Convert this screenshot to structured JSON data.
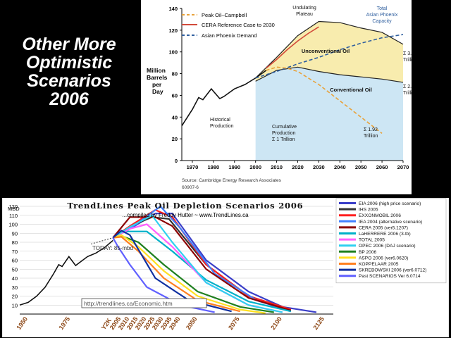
{
  "slide": {
    "title_lines": [
      "Other More",
      "Optimistic",
      "Scenarios",
      "2006"
    ]
  },
  "colors": {
    "background": "#000000",
    "peak_campbell": "#e8a23a",
    "cera": "#d24a3a",
    "asian": "#2f5f9f",
    "fill_unconv": "#f8ecae",
    "fill_conv": "#cde6f4"
  },
  "chart_data": [
    {
      "type": "line",
      "ylabel": "Million Barrels per Day",
      "ylim": [
        0,
        140
      ],
      "xlim": [
        1965,
        2070
      ],
      "x_ticks": [
        1970,
        1980,
        1990,
        2000,
        2010,
        2020,
        2030,
        2040,
        2050,
        2060,
        2070
      ],
      "y_ticks": [
        0,
        20,
        40,
        60,
        80,
        100,
        120,
        140
      ],
      "grid": false,
      "legend_position": "top-left",
      "series": [
        {
          "name": "Peak Oil–Campbell",
          "color": "#e8a23a",
          "dashed": true,
          "x": [
            2005,
            2010,
            2015,
            2020,
            2030,
            2040,
            2050,
            2060
          ],
          "y": [
            83,
            86,
            85,
            82,
            70,
            55,
            40,
            25
          ]
        },
        {
          "name": "CERA Reference Case to 2030",
          "color": "#d24a3a",
          "dashed": false,
          "x": [
            2005,
            2010,
            2015,
            2020,
            2025,
            2030
          ],
          "y": [
            85,
            93,
            102,
            110,
            117,
            123
          ]
        },
        {
          "name": "Asian Phoenix Demand",
          "color": "#2f5f9f",
          "dashed": true,
          "x": [
            2000,
            2010,
            2020,
            2030,
            2040,
            2050,
            2060,
            2070
          ],
          "y": [
            76,
            82,
            89,
            95,
            102,
            108,
            113,
            116
          ]
        },
        {
          "name": "Historical Production",
          "color": "#111111",
          "dashed": false,
          "x": [
            1965,
            1970,
            1973,
            1975,
            1979,
            1983,
            1985,
            1990,
            1995,
            2000,
            2005
          ],
          "y": [
            32,
            47,
            58,
            56,
            66,
            57,
            59,
            66,
            70,
            76,
            83
          ]
        },
        {
          "name": "Total Asian Phoenix Capacity",
          "color": "#222222",
          "dashed": false,
          "x": [
            2000,
            2010,
            2020,
            2030,
            2040,
            2050,
            2060,
            2070
          ],
          "y": [
            76,
            95,
            115,
            128,
            127,
            122,
            118,
            107
          ]
        },
        {
          "name": "Conventional Oil",
          "color": "#222222",
          "dashed": false,
          "x": [
            2000,
            2010,
            2020,
            2030,
            2040,
            2050,
            2060,
            2070
          ],
          "y": [
            73,
            83,
            86,
            82,
            79,
            77,
            75,
            72
          ]
        }
      ],
      "annotations": {
        "plateau": "Undulating Plateau",
        "capacity": "Total Asian Phoenix Capacity",
        "unconventional": "Unconventional Oil",
        "conventional": "Conventional Oil",
        "historical": "Historical Production",
        "cumulative": "Cumulative Production Σ 1 Trillion",
        "total_361": "Σ 3.61 Trillion",
        "total_293": "Σ 2.93 Trillion",
        "total_192": "Σ 1.92 Trillion"
      },
      "source": "Source: Cambridge Energy Research Associates",
      "source_id": "60907-6"
    },
    {
      "type": "line",
      "title": "TrendLines Peak Oil Depletion Scenarios 2006",
      "subtitle": "...compiled by Freddy Hutter ~ www.TrendLines.ca",
      "ylabel": "MBD",
      "ylim": [
        0,
        120
      ],
      "xlim": [
        1950,
        2135
      ],
      "x_ticks": [
        "1950",
        "1975",
        "Y2K",
        "2005",
        "2010",
        "2015",
        "2020",
        "2025",
        "2030",
        "2035",
        "2040",
        "2050",
        "2075",
        "2100",
        "2125"
      ],
      "x_tick_values": [
        1950,
        1975,
        2000,
        2005,
        2010,
        2015,
        2020,
        2025,
        2030,
        2035,
        2040,
        2050,
        2075,
        2100,
        2125
      ],
      "y_ticks": [
        10,
        20,
        30,
        40,
        50,
        60,
        70,
        80,
        90,
        100,
        110,
        120
      ],
      "grid": true,
      "legend_position": "right",
      "today_label": "TODAY:  85-mbd",
      "url_label": "http://trendlines.ca/Economic.htm",
      "historical": {
        "x": [
          1950,
          1955,
          1960,
          1965,
          1970,
          1973,
          1975,
          1979,
          1983,
          1985,
          1990,
          1995,
          2000,
          2005
        ],
        "y": [
          10,
          13,
          20,
          30,
          45,
          55,
          53,
          64,
          54,
          57,
          64,
          68,
          74,
          82
        ]
      },
      "series": [
        {
          "name": "EIA 2006 (high price scenario)",
          "color": "#3a3ec8",
          "x": [
            2005,
            2015,
            2030,
            2040,
            2060,
            2085,
            2105,
            2125
          ],
          "y": [
            85,
            95,
            112,
            112,
            60,
            25,
            8,
            2
          ]
        },
        {
          "name": "IHS 2005",
          "color": "#333333",
          "x": [
            2005,
            2018,
            2028,
            2038,
            2060,
            2085,
            2110
          ],
          "y": [
            85,
            100,
            108,
            106,
            55,
            20,
            5
          ]
        },
        {
          "name": "EXXONMOBIL 2006",
          "color": "#ff2020",
          "x": [
            2005,
            2015,
            2030,
            2040,
            2060,
            2085,
            2110
          ],
          "y": [
            85,
            98,
            116,
            108,
            55,
            20,
            5
          ]
        },
        {
          "name": "IEA 2004 (alternative scenario)",
          "color": "#4080ff",
          "x": [
            2005,
            2015,
            2033,
            2045,
            2065,
            2090,
            2110
          ],
          "y": [
            85,
            95,
            120,
            95,
            45,
            15,
            3
          ]
        },
        {
          "name": "CERA 2005 (ver5.1207)",
          "color": "#8b0000",
          "x": [
            2005,
            2015,
            2030,
            2040,
            2060,
            2085,
            2110
          ],
          "y": [
            85,
            108,
            108,
            98,
            50,
            18,
            4
          ]
        },
        {
          "name": "LaHERRERE 2006 (3-tb)",
          "color": "#00b0c8",
          "x": [
            2005,
            2012,
            2025,
            2040,
            2060,
            2085,
            2110
          ],
          "y": [
            85,
            92,
            92,
            70,
            38,
            14,
            3
          ]
        },
        {
          "name": "TOTAL 2005",
          "color": "#ff60ff",
          "x": [
            2005,
            2015,
            2025,
            2040,
            2060,
            2085,
            2105
          ],
          "y": [
            85,
            95,
            100,
            75,
            35,
            10,
            2
          ]
        },
        {
          "name": "OPEC 2006 (DAJ scenario)",
          "color": "#30d0f0",
          "x": [
            2005,
            2015,
            2028,
            2040,
            2060,
            2085,
            2105
          ],
          "y": [
            85,
            97,
            110,
            80,
            35,
            10,
            2
          ]
        },
        {
          "name": "BP 2006",
          "color": "#208020",
          "x": [
            2005,
            2010,
            2020,
            2035,
            2055,
            2080,
            2100
          ],
          "y": [
            85,
            87,
            80,
            55,
            25,
            8,
            2
          ]
        },
        {
          "name": "ASPO 2006 (ver6.0620)",
          "color": "#ffe020",
          "x": [
            2005,
            2010,
            2020,
            2035,
            2055,
            2080,
            2095
          ],
          "y": [
            85,
            88,
            75,
            48,
            20,
            5,
            1
          ]
        },
        {
          "name": "KOPPELAAR 2005",
          "color": "#ff8020",
          "x": [
            2005,
            2010,
            2020,
            2035,
            2055,
            2080
          ],
          "y": [
            85,
            86,
            70,
            40,
            15,
            3
          ]
        },
        {
          "name": "SKREBOWSKI 2006 (ver6.0712)",
          "color": "#1030a0",
          "x": [
            2005,
            2010,
            2015,
            2030,
            2050,
            2075
          ],
          "y": [
            85,
            93,
            88,
            40,
            15,
            3
          ]
        },
        {
          "name": "Past    SCENARIOS Ver 6.0714",
          "color": "#6060ff",
          "x": [
            2005,
            2008,
            2015,
            2025,
            2045,
            2065
          ],
          "y": [
            85,
            75,
            55,
            30,
            10,
            2
          ]
        }
      ]
    }
  ]
}
